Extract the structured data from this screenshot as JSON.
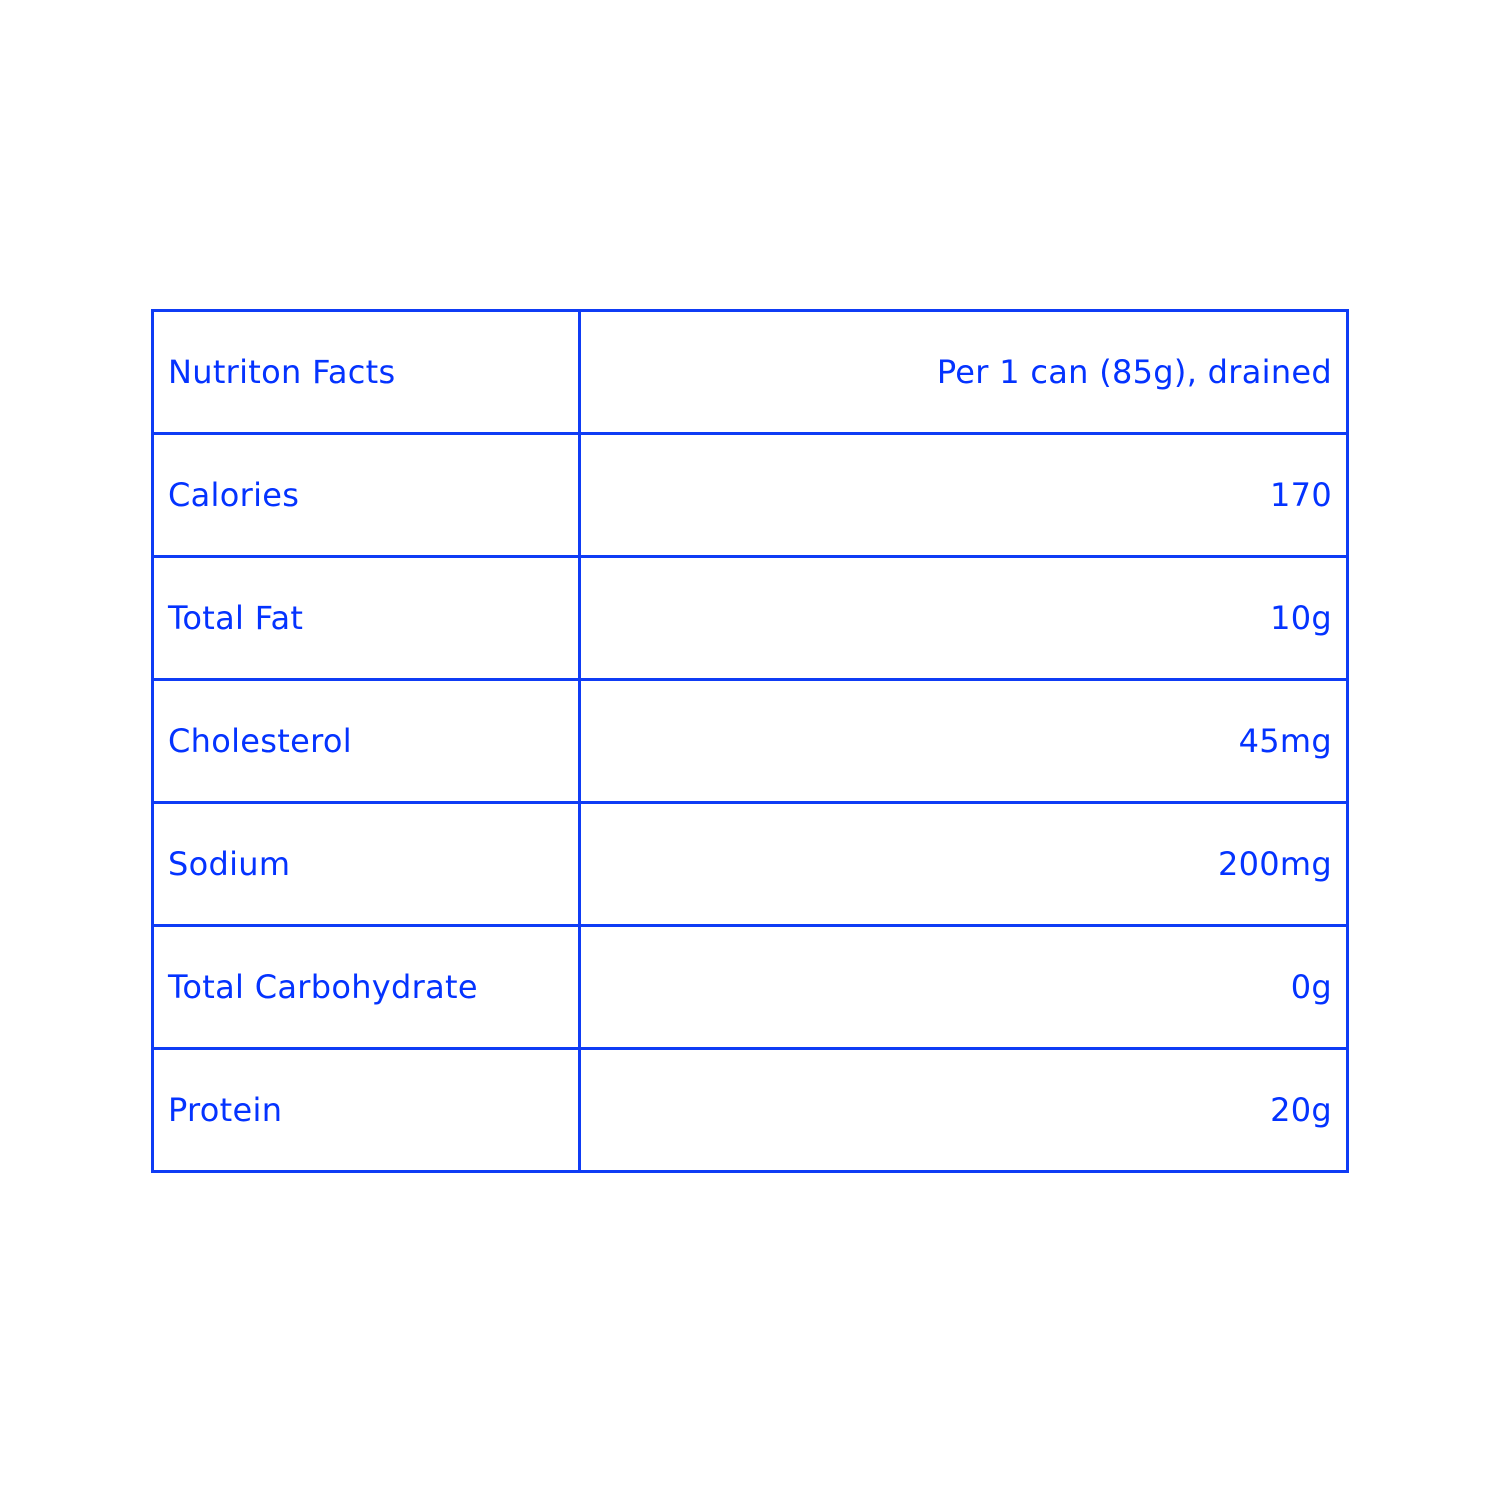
{
  "table": {
    "header": {
      "label": "Nutriton Facts",
      "value": "Per 1 can (85g), drained"
    },
    "rows": [
      {
        "label": "Calories",
        "value": "170"
      },
      {
        "label": "Total Fat",
        "value": "10g"
      },
      {
        "label": "Cholesterol",
        "value": "45mg"
      },
      {
        "label": "Sodium",
        "value": "200mg"
      },
      {
        "label": "Total Carbohydrate",
        "value": "0g"
      },
      {
        "label": "Protein",
        "value": "20g"
      }
    ]
  },
  "colors": {
    "text": "#0433ff",
    "border": "#0f3cf5",
    "background": "#ffffff"
  }
}
